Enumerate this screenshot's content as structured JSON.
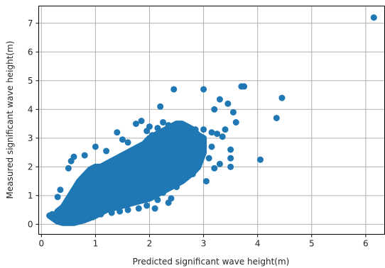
{
  "chart_data": {
    "type": "scatter",
    "title": "",
    "xlabel": "Predicted significant wave height(m)",
    "ylabel": "Measured significant wave height(m)",
    "xlim": [
      -0.05,
      6.35
    ],
    "ylim": [
      -0.35,
      7.6
    ],
    "xticks": [
      0,
      1,
      2,
      3,
      4,
      5,
      6
    ],
    "yticks": [
      0,
      1,
      2,
      3,
      4,
      5,
      6,
      7
    ],
    "grid": true,
    "marker_color": "#1f77b4",
    "dense_cloud": {
      "description_points": [
        [
          0.15,
          0.3
        ],
        [
          0.25,
          0.25
        ],
        [
          0.3,
          0.45
        ],
        [
          0.4,
          0.6
        ],
        [
          0.5,
          0.9
        ],
        [
          0.6,
          1.2
        ],
        [
          0.7,
          1.5
        ],
        [
          0.8,
          1.7
        ],
        [
          0.9,
          1.9
        ],
        [
          1.0,
          2.0
        ],
        [
          1.1,
          2.0
        ],
        [
          1.2,
          2.1
        ],
        [
          1.3,
          2.2
        ],
        [
          1.4,
          2.3
        ],
        [
          1.5,
          2.4
        ],
        [
          1.6,
          2.5
        ],
        [
          1.7,
          2.6
        ],
        [
          1.8,
          2.7
        ],
        [
          1.9,
          2.8
        ],
        [
          2.0,
          3.0
        ],
        [
          2.1,
          3.1
        ],
        [
          2.2,
          3.2
        ],
        [
          2.3,
          3.3
        ],
        [
          2.4,
          3.4
        ],
        [
          2.5,
          3.5
        ],
        [
          2.6,
          3.5
        ],
        [
          2.7,
          3.4
        ],
        [
          2.8,
          3.3
        ],
        [
          2.9,
          3.1
        ],
        [
          3.0,
          3.0
        ],
        [
          3.0,
          2.5
        ],
        [
          2.9,
          2.0
        ],
        [
          2.8,
          1.8
        ],
        [
          2.6,
          1.5
        ],
        [
          2.4,
          1.3
        ],
        [
          2.2,
          1.1
        ],
        [
          2.0,
          0.9
        ],
        [
          1.8,
          0.8
        ],
        [
          1.6,
          0.7
        ],
        [
          1.4,
          0.6
        ],
        [
          1.2,
          0.5
        ],
        [
          1.0,
          0.3
        ],
        [
          0.8,
          0.15
        ],
        [
          0.6,
          0.05
        ],
        [
          0.4,
          0.05
        ],
        [
          0.3,
          0.1
        ]
      ]
    },
    "points": [
      [
        6.15,
        7.2
      ],
      [
        3.75,
        4.8
      ],
      [
        3.7,
        4.8
      ],
      [
        4.45,
        4.4
      ],
      [
        4.35,
        3.7
      ],
      [
        3.0,
        4.7
      ],
      [
        2.45,
        4.7
      ],
      [
        3.3,
        4.35
      ],
      [
        3.45,
        4.2
      ],
      [
        3.2,
        4.0
      ],
      [
        2.2,
        4.1
      ],
      [
        4.05,
        2.25
      ],
      [
        3.4,
        3.3
      ],
      [
        3.55,
        3.9
      ],
      [
        3.6,
        3.55
      ],
      [
        3.5,
        2.6
      ],
      [
        3.5,
        2.3
      ],
      [
        3.5,
        2.0
      ],
      [
        3.1,
        2.3
      ],
      [
        3.3,
        2.1
      ],
      [
        3.2,
        1.95
      ],
      [
        3.05,
        1.5
      ],
      [
        2.8,
        1.75
      ],
      [
        2.65,
        1.6
      ],
      [
        2.5,
        1.3
      ],
      [
        2.4,
        0.9
      ],
      [
        2.35,
        0.75
      ],
      [
        2.1,
        0.55
      ],
      [
        1.85,
        3.6
      ],
      [
        1.75,
        3.5
      ],
      [
        2.0,
        3.4
      ],
      [
        2.15,
        3.35
      ],
      [
        2.3,
        3.2
      ],
      [
        2.7,
        3.4
      ],
      [
        2.85,
        3.3
      ],
      [
        3.0,
        3.3
      ],
      [
        3.15,
        3.2
      ],
      [
        3.25,
        3.15
      ],
      [
        3.35,
        3.05
      ],
      [
        1.4,
        3.2
      ],
      [
        1.0,
        2.7
      ],
      [
        1.5,
        2.95
      ],
      [
        1.6,
        2.85
      ],
      [
        2.9,
        2.7
      ],
      [
        2.95,
        2.5
      ],
      [
        3.15,
        2.7
      ],
      [
        1.2,
        2.55
      ],
      [
        0.6,
        2.35
      ],
      [
        0.8,
        2.4
      ],
      [
        0.55,
        2.2
      ],
      [
        0.5,
        1.95
      ],
      [
        0.3,
        0.95
      ],
      [
        0.35,
        1.2
      ],
      [
        0.2,
        0.35
      ],
      [
        0.15,
        0.3
      ],
      [
        0.25,
        0.2
      ],
      [
        2.6,
        2.6
      ],
      [
        2.4,
        2.75
      ],
      [
        2.75,
        2.9
      ],
      [
        2.55,
        3.05
      ],
      [
        2.25,
        3.55
      ],
      [
        2.35,
        3.45
      ],
      [
        1.95,
        3.25
      ],
      [
        2.05,
        3.1
      ],
      [
        2.65,
        2.15
      ],
      [
        2.8,
        2.05
      ],
      [
        2.5,
        1.55
      ],
      [
        2.25,
        1.1
      ],
      [
        2.15,
        0.85
      ],
      [
        1.95,
        0.65
      ],
      [
        1.8,
        0.55
      ],
      [
        1.6,
        0.5
      ],
      [
        1.45,
        0.45
      ],
      [
        1.3,
        0.4
      ],
      [
        1.1,
        0.35
      ],
      [
        0.95,
        0.25
      ],
      [
        0.8,
        0.15
      ],
      [
        0.65,
        0.1
      ],
      [
        0.5,
        0.05
      ],
      [
        0.4,
        0.05
      ],
      [
        0.35,
        0.1
      ]
    ]
  }
}
